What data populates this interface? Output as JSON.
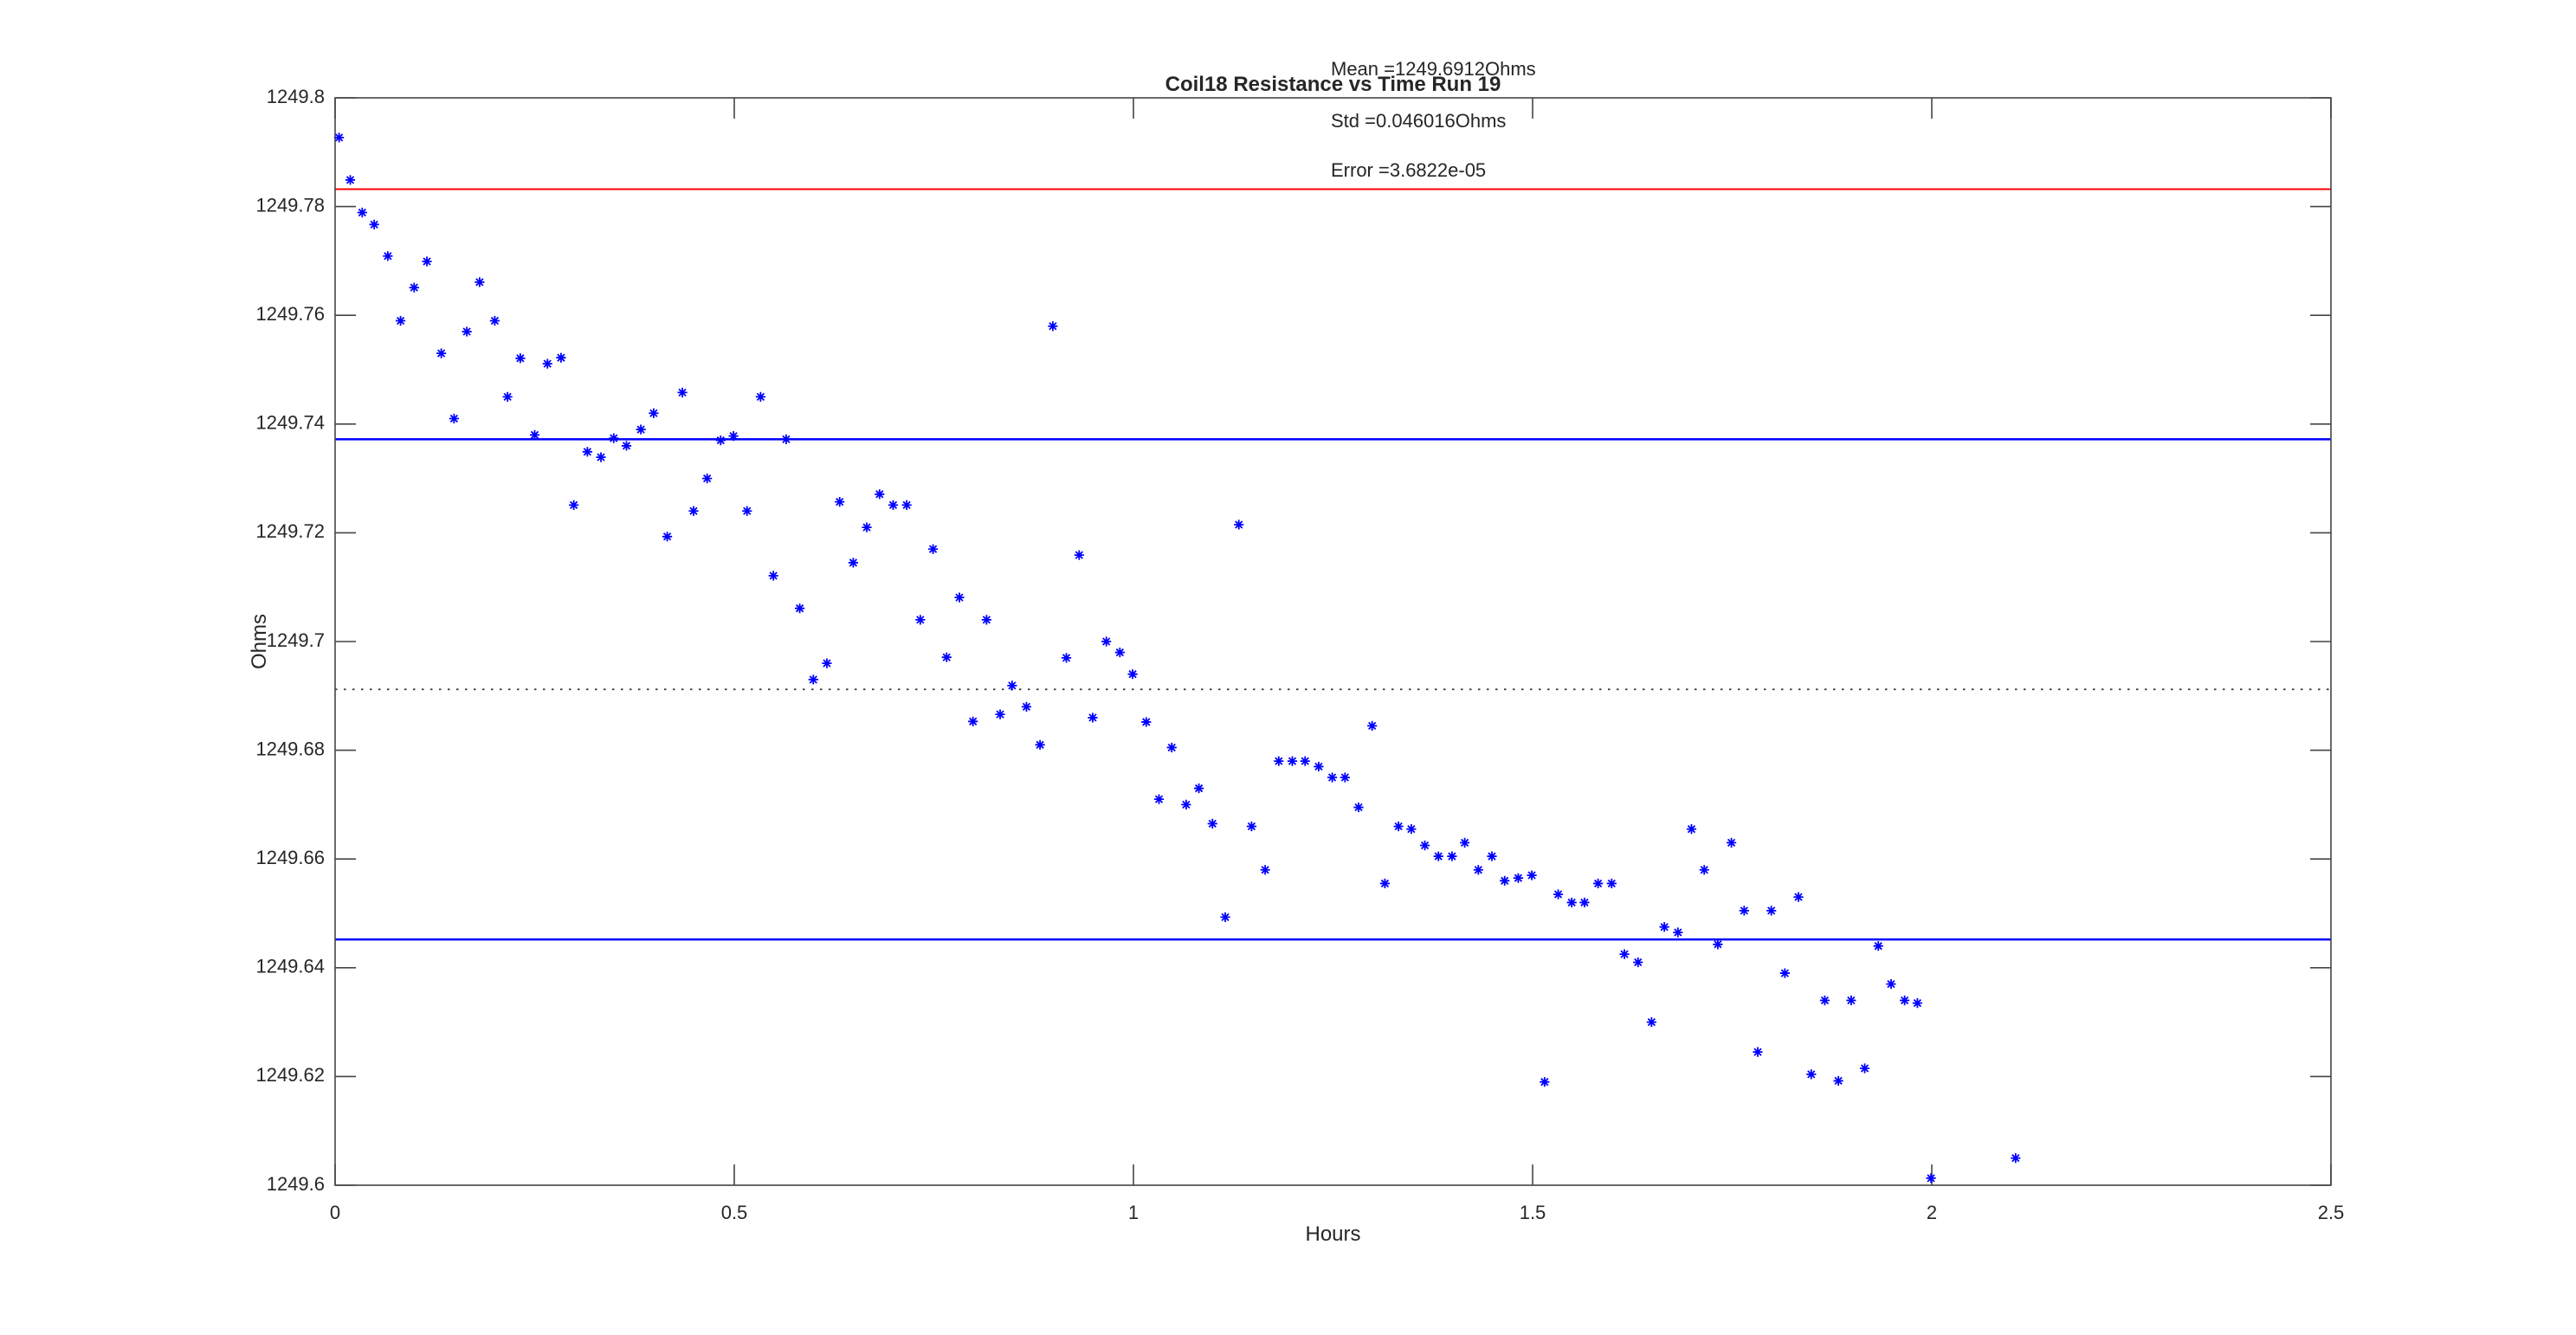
{
  "figure": {
    "title": "Coil18 Resistance vs Time Run 19",
    "xlabel": "Hours",
    "ylabel": "Ohms",
    "annotations": [
      {
        "id": "mean",
        "text": "Mean =1249.6912Ohms"
      },
      {
        "id": "std",
        "text": "Std =0.046016Ohms"
      },
      {
        "id": "error",
        "text": "Error =3.6822e-05"
      }
    ]
  },
  "colors": {
    "marker": "#0000ff",
    "sigma_line": "#0000ff",
    "two_sigma_line": "#ff0000",
    "mean_line": "#333333",
    "axis": "#454545",
    "text": "#262626",
    "background": "#ffffff"
  },
  "chart_data": {
    "type": "scatter",
    "title": "Coil18 Resistance vs Time Run 19",
    "xlabel": "Hours",
    "ylabel": "Ohms",
    "xlim": [
      0,
      2.5
    ],
    "ylim": [
      1249.6,
      1249.8
    ],
    "xticks": [
      0,
      0.5,
      1,
      1.5,
      2,
      2.5
    ],
    "xtick_labels": [
      "0",
      "0.5",
      "1",
      "1.5",
      "2",
      "2.5"
    ],
    "yticks": [
      1249.6,
      1249.62,
      1249.64,
      1249.66,
      1249.68,
      1249.7,
      1249.72,
      1249.74,
      1249.76,
      1249.78,
      1249.8
    ],
    "ytick_labels": [
      "1249.6",
      "1249.62",
      "1249.64",
      "1249.66",
      "1249.68",
      "1249.7",
      "1249.72",
      "1249.74",
      "1249.76",
      "1249.78",
      "1249.8"
    ],
    "grid": false,
    "legend": false,
    "box": true,
    "stats": {
      "mean": 1249.6912,
      "std": 0.046016,
      "error": 3.6822e-05
    },
    "reference_lines": [
      {
        "name": "mean_plus_2std",
        "value": 1249.7832,
        "color": "#ff0000",
        "style": "solid",
        "width": 2
      },
      {
        "name": "mean_plus_std",
        "value": 1249.7372,
        "color": "#0000ff",
        "style": "solid",
        "width": 2.5
      },
      {
        "name": "mean",
        "value": 1249.6912,
        "color": "#333333",
        "style": "dotted",
        "width": 1.8
      },
      {
        "name": "mean_minus_std",
        "value": 1249.6452,
        "color": "#0000ff",
        "style": "solid",
        "width": 2.5
      }
    ],
    "series": [
      {
        "name": "Coil18 resistance",
        "marker": "asterisk",
        "color": "#0000ff",
        "points": [
          [
            0.005,
            1249.7927
          ],
          [
            0.019,
            1249.7849
          ],
          [
            0.034,
            1249.7789
          ],
          [
            0.049,
            1249.7767
          ],
          [
            0.066,
            1249.7709
          ],
          [
            0.082,
            1249.759
          ],
          [
            0.099,
            1249.7651
          ],
          [
            0.115,
            1249.7699
          ],
          [
            0.133,
            1249.753
          ],
          [
            0.149,
            1249.741
          ],
          [
            0.165,
            1249.757
          ],
          [
            0.181,
            1249.7661
          ],
          [
            0.2,
            1249.759
          ],
          [
            0.216,
            1249.745
          ],
          [
            0.232,
            1249.7521
          ],
          [
            0.25,
            1249.738
          ],
          [
            0.266,
            1249.7511
          ],
          [
            0.283,
            1249.7522
          ],
          [
            0.299,
            1249.7251
          ],
          [
            0.316,
            1249.7349
          ],
          [
            0.333,
            1249.7339
          ],
          [
            0.349,
            1249.7374
          ],
          [
            0.365,
            1249.736
          ],
          [
            0.383,
            1249.739
          ],
          [
            0.399,
            1249.742
          ],
          [
            0.416,
            1249.7193
          ],
          [
            0.435,
            1249.7458
          ],
          [
            0.449,
            1249.724
          ],
          [
            0.466,
            1249.73
          ],
          [
            0.483,
            1249.737
          ],
          [
            0.499,
            1249.7378
          ],
          [
            0.516,
            1249.724
          ],
          [
            0.533,
            1249.745
          ],
          [
            0.549,
            1249.7121
          ],
          [
            0.565,
            1249.7372
          ],
          [
            0.582,
            1249.7061
          ],
          [
            0.599,
            1249.693
          ],
          [
            0.616,
            1249.696
          ],
          [
            0.632,
            1249.7257
          ],
          [
            0.649,
            1249.7145
          ],
          [
            0.666,
            1249.721
          ],
          [
            0.682,
            1249.7271
          ],
          [
            0.699,
            1249.7251
          ],
          [
            0.716,
            1249.7251
          ],
          [
            0.733,
            1249.704
          ],
          [
            0.749,
            1249.717
          ],
          [
            0.766,
            1249.6971
          ],
          [
            0.782,
            1249.7081
          ],
          [
            0.799,
            1249.6853
          ],
          [
            0.816,
            1249.704
          ],
          [
            0.833,
            1249.6866
          ],
          [
            0.848,
            1249.6919
          ],
          [
            0.866,
            1249.688
          ],
          [
            0.883,
            1249.681
          ],
          [
            0.899,
            1249.758
          ],
          [
            0.916,
            1249.697
          ],
          [
            0.932,
            1249.7159
          ],
          [
            0.949,
            1249.686
          ],
          [
            0.966,
            1249.7
          ],
          [
            0.983,
            1249.698
          ],
          [
            0.999,
            1249.694
          ],
          [
            1.016,
            1249.6852
          ],
          [
            1.032,
            1249.671
          ],
          [
            1.048,
            1249.6805
          ],
          [
            1.066,
            1249.67
          ],
          [
            1.082,
            1249.673
          ],
          [
            1.099,
            1249.6665
          ],
          [
            1.115,
            1249.6493
          ],
          [
            1.132,
            1249.7215
          ],
          [
            1.148,
            1249.666
          ],
          [
            1.165,
            1249.658
          ],
          [
            1.182,
            1249.678
          ],
          [
            1.199,
            1249.678
          ],
          [
            1.215,
            1249.678
          ],
          [
            1.232,
            1249.677
          ],
          [
            1.249,
            1249.675
          ],
          [
            1.265,
            1249.675
          ],
          [
            1.282,
            1249.6695
          ],
          [
            1.299,
            1249.6845
          ],
          [
            1.315,
            1249.6555
          ],
          [
            1.332,
            1249.666
          ],
          [
            1.348,
            1249.6655
          ],
          [
            1.365,
            1249.6625
          ],
          [
            1.382,
            1249.6605
          ],
          [
            1.399,
            1249.6605
          ],
          [
            1.415,
            1249.663
          ],
          [
            1.432,
            1249.658
          ],
          [
            1.449,
            1249.6605
          ],
          [
            1.465,
            1249.656
          ],
          [
            1.482,
            1249.6565
          ],
          [
            1.499,
            1249.657
          ],
          [
            1.515,
            1249.619
          ],
          [
            1.532,
            1249.6535
          ],
          [
            1.549,
            1249.652
          ],
          [
            1.565,
            1249.652
          ],
          [
            1.582,
            1249.6555
          ],
          [
            1.599,
            1249.6555
          ],
          [
            1.615,
            1249.6425
          ],
          [
            1.632,
            1249.641
          ],
          [
            1.649,
            1249.63
          ],
          [
            1.665,
            1249.6475
          ],
          [
            1.682,
            1249.6465
          ],
          [
            1.699,
            1249.6655
          ],
          [
            1.715,
            1249.658
          ],
          [
            1.732,
            1249.6443
          ],
          [
            1.749,
            1249.663
          ],
          [
            1.765,
            1249.6505
          ],
          [
            1.782,
            1249.6245
          ],
          [
            1.799,
            1249.6505
          ],
          [
            1.816,
            1249.639
          ],
          [
            1.833,
            1249.653
          ],
          [
            1.849,
            1249.6204
          ],
          [
            1.866,
            1249.634
          ],
          [
            1.883,
            1249.6192
          ],
          [
            1.899,
            1249.634
          ],
          [
            1.916,
            1249.6215
          ],
          [
            1.933,
            1249.644
          ],
          [
            1.949,
            1249.637
          ],
          [
            1.966,
            1249.634
          ],
          [
            1.982,
            1249.6335
          ],
          [
            1.999,
            1249.6013
          ],
          [
            2.105,
            1249.605
          ]
        ]
      }
    ]
  }
}
